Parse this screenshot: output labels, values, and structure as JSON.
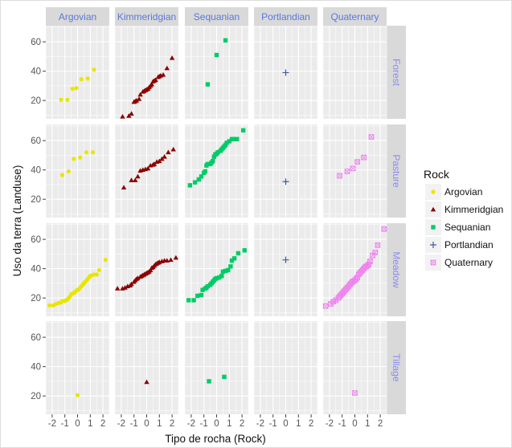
{
  "chart_data": {
    "type": "scatter",
    "subtype": "faceted normal QQ plot",
    "xlabel": "Tipo de rocha (Rock)",
    "ylabel": "Uso da terra (Landuse)",
    "xlim": [
      -2.5,
      2.5
    ],
    "ylim": [
      7.5,
      71
    ],
    "xticks": [
      -2,
      -1,
      0,
      1,
      2
    ],
    "yticks": [
      20,
      40,
      60
    ],
    "grid": true,
    "columns": [
      "Argovian",
      "Kimmeridgian",
      "Sequanian",
      "Portlandian",
      "Quaternary"
    ],
    "rows": [
      "Forest",
      "Pasture",
      "Meadow",
      "Tillage"
    ],
    "legend": {
      "title": "Rock",
      "position": "right",
      "entries": [
        {
          "name": "Argovian",
          "color": "#e8e600",
          "shape": "circle"
        },
        {
          "name": "Kimmeridgian",
          "color": "#8b0000",
          "shape": "triangle"
        },
        {
          "name": "Sequanian",
          "color": "#00cc66",
          "shape": "square"
        },
        {
          "name": "Portlandian",
          "color": "#3a5fa0",
          "shape": "plus"
        },
        {
          "name": "Quaternary",
          "color": "#ee82ee",
          "shape": "square-cross"
        }
      ]
    },
    "panels": {
      "Forest": {
        "Argovian": [
          [
            -1.3,
            20.5
          ],
          [
            -0.8,
            20.5
          ],
          [
            -0.4,
            28
          ],
          [
            -0.1,
            28.5
          ],
          [
            0.3,
            34.5
          ],
          [
            0.8,
            35
          ],
          [
            1.3,
            41
          ]
        ],
        "Kimmeridgian": [
          [
            -1.9,
            9
          ],
          [
            -1.4,
            9.5
          ],
          [
            -1.2,
            11
          ],
          [
            -1.0,
            19
          ],
          [
            -0.9,
            19.5
          ],
          [
            -0.8,
            20
          ],
          [
            -0.6,
            21
          ],
          [
            -0.5,
            24
          ],
          [
            -0.3,
            26
          ],
          [
            -0.2,
            26.5
          ],
          [
            -0.1,
            27
          ],
          [
            0,
            27.5
          ],
          [
            0.1,
            28
          ],
          [
            0.2,
            29
          ],
          [
            0.3,
            30
          ],
          [
            0.4,
            31
          ],
          [
            0.5,
            33
          ],
          [
            0.6,
            33.5
          ],
          [
            0.7,
            34
          ],
          [
            0.9,
            36
          ],
          [
            1.0,
            36.5
          ],
          [
            1.1,
            37
          ],
          [
            1.3,
            37.5
          ],
          [
            1.6,
            42
          ],
          [
            2.0,
            49
          ]
        ],
        "Sequanian": [
          [
            -0.7,
            31
          ],
          [
            0,
            51
          ],
          [
            0.7,
            61
          ]
        ],
        "Portlandian": [
          [
            0,
            39
          ]
        ],
        "Quaternary": []
      },
      "Pasture": {
        "Argovian": [
          [
            -1.2,
            36.5
          ],
          [
            -0.7,
            39
          ],
          [
            -0.3,
            47.5
          ],
          [
            0.2,
            48.5
          ],
          [
            0.7,
            52
          ],
          [
            1.2,
            52
          ]
        ],
        "Kimmeridgian": [
          [
            -1.8,
            28
          ],
          [
            -1.2,
            33
          ],
          [
            -0.9,
            33
          ],
          [
            -0.7,
            35.5
          ],
          [
            -0.5,
            39.5
          ],
          [
            -0.3,
            40
          ],
          [
            -0.1,
            40.5
          ],
          [
            0.1,
            41
          ],
          [
            0.3,
            43
          ],
          [
            0.5,
            43.5
          ],
          [
            0.6,
            44
          ],
          [
            0.8,
            45.5
          ],
          [
            1.0,
            46
          ],
          [
            1.2,
            47.5
          ],
          [
            1.4,
            49
          ],
          [
            1.7,
            52
          ],
          [
            2.1,
            54
          ]
        ],
        "Sequanian": [
          [
            -2.1,
            29.5
          ],
          [
            -1.7,
            31.5
          ],
          [
            -1.4,
            33.5
          ],
          [
            -1.2,
            35.5
          ],
          [
            -1.0,
            38
          ],
          [
            -0.9,
            39
          ],
          [
            -0.8,
            43
          ],
          [
            -0.7,
            44
          ],
          [
            -0.5,
            44
          ],
          [
            -0.4,
            45
          ],
          [
            -0.3,
            46
          ],
          [
            -0.2,
            49
          ],
          [
            -0.1,
            50.5
          ],
          [
            0,
            51
          ],
          [
            0.1,
            52
          ],
          [
            0.3,
            53
          ],
          [
            0.4,
            54
          ],
          [
            0.5,
            55
          ],
          [
            0.6,
            56
          ],
          [
            0.7,
            57
          ],
          [
            0.8,
            58.5
          ],
          [
            1.0,
            59.5
          ],
          [
            1.2,
            61
          ],
          [
            1.4,
            61
          ],
          [
            1.6,
            61
          ],
          [
            2.1,
            67
          ]
        ],
        "Portlandian": [
          [
            0,
            32
          ]
        ],
        "Quaternary": [
          [
            -1.2,
            36
          ],
          [
            -0.6,
            39
          ],
          [
            -0.15,
            41
          ],
          [
            0.2,
            45.5
          ],
          [
            0.7,
            48.5
          ],
          [
            1.3,
            62.5
          ]
        ]
      },
      "Meadow": {
        "Argovian": [
          [
            -2.2,
            15
          ],
          [
            -1.9,
            15
          ],
          [
            -1.7,
            16
          ],
          [
            -1.5,
            16.5
          ],
          [
            -1.3,
            17
          ],
          [
            -1.2,
            18
          ],
          [
            -1.0,
            18
          ],
          [
            -0.9,
            18.5
          ],
          [
            -0.8,
            19
          ],
          [
            -0.7,
            20
          ],
          [
            -0.6,
            21
          ],
          [
            -0.5,
            22.5
          ],
          [
            -0.4,
            23
          ],
          [
            -0.3,
            23.5
          ],
          [
            -0.2,
            24
          ],
          [
            -0.1,
            25
          ],
          [
            0,
            25.5
          ],
          [
            0.1,
            26
          ],
          [
            0.2,
            27
          ],
          [
            0.3,
            28
          ],
          [
            0.4,
            29
          ],
          [
            0.5,
            30
          ],
          [
            0.6,
            31
          ],
          [
            0.7,
            32
          ],
          [
            0.8,
            33
          ],
          [
            0.9,
            34
          ],
          [
            1.0,
            35
          ],
          [
            1.1,
            35.5
          ],
          [
            1.3,
            36
          ],
          [
            1.5,
            36
          ],
          [
            1.7,
            39
          ],
          [
            2.2,
            46
          ]
        ],
        "Kimmeridgian": [
          [
            -2.3,
            26.5
          ],
          [
            -1.9,
            26.5
          ],
          [
            -1.7,
            27
          ],
          [
            -1.5,
            28
          ],
          [
            -1.3,
            28.5
          ],
          [
            -1.2,
            29.5
          ],
          [
            -1.0,
            31
          ],
          [
            -0.9,
            32
          ],
          [
            -0.8,
            33
          ],
          [
            -0.7,
            33.5
          ],
          [
            -0.5,
            34.5
          ],
          [
            -0.4,
            35
          ],
          [
            -0.3,
            35.5
          ],
          [
            -0.2,
            36
          ],
          [
            -0.1,
            36.5
          ],
          [
            0,
            37
          ],
          [
            0.1,
            37.5
          ],
          [
            0.2,
            38
          ],
          [
            0.3,
            39
          ],
          [
            0.4,
            40.5
          ],
          [
            0.5,
            41
          ],
          [
            0.6,
            42
          ],
          [
            0.7,
            43
          ],
          [
            0.8,
            43.5
          ],
          [
            0.9,
            44
          ],
          [
            1.0,
            44.5
          ],
          [
            1.2,
            45
          ],
          [
            1.4,
            45.5
          ],
          [
            1.6,
            45.5
          ],
          [
            1.9,
            46
          ],
          [
            2.3,
            47.5
          ]
        ],
        "Sequanian": [
          [
            -2.2,
            18.5
          ],
          [
            -1.8,
            18.5
          ],
          [
            -1.5,
            21.5
          ],
          [
            -1.2,
            22
          ],
          [
            -1.1,
            25.5
          ],
          [
            -0.9,
            26.5
          ],
          [
            -0.8,
            27
          ],
          [
            -0.7,
            28
          ],
          [
            -0.5,
            29
          ],
          [
            -0.4,
            30
          ],
          [
            -0.3,
            31
          ],
          [
            -0.2,
            32
          ],
          [
            -0.1,
            33
          ],
          [
            0,
            33.5
          ],
          [
            0.2,
            34
          ],
          [
            0.4,
            35
          ],
          [
            0.5,
            38
          ],
          [
            0.7,
            38.5
          ],
          [
            0.9,
            39
          ],
          [
            1.1,
            41.5
          ],
          [
            1.2,
            45.5
          ],
          [
            1.4,
            47
          ],
          [
            1.7,
            50.5
          ],
          [
            2.2,
            52.5
          ]
        ],
        "Portlandian": [
          [
            0,
            46
          ]
        ],
        "Quaternary": [
          [
            -2.3,
            14.5
          ],
          [
            -1.9,
            16
          ],
          [
            -1.7,
            17.5
          ],
          [
            -1.5,
            18.5
          ],
          [
            -1.3,
            20
          ],
          [
            -1.2,
            21
          ],
          [
            -1.1,
            22
          ],
          [
            -1.0,
            23
          ],
          [
            -0.9,
            24
          ],
          [
            -0.8,
            25
          ],
          [
            -0.7,
            26
          ],
          [
            -0.6,
            27
          ],
          [
            -0.5,
            28
          ],
          [
            -0.4,
            29
          ],
          [
            -0.3,
            30
          ],
          [
            -0.2,
            31
          ],
          [
            -0.1,
            31.5
          ],
          [
            0,
            32
          ],
          [
            0.1,
            33
          ],
          [
            0.2,
            34
          ],
          [
            0.3,
            36
          ],
          [
            0.4,
            37
          ],
          [
            0.5,
            38
          ],
          [
            0.6,
            39
          ],
          [
            0.7,
            40
          ],
          [
            0.8,
            41
          ],
          [
            0.9,
            41.5
          ],
          [
            1.0,
            42
          ],
          [
            1.1,
            43
          ],
          [
            1.2,
            45
          ],
          [
            1.4,
            49
          ],
          [
            1.6,
            51
          ],
          [
            1.8,
            56
          ],
          [
            2.3,
            67
          ]
        ]
      },
      "Tillage": {
        "Argovian": [
          [
            0,
            20.5
          ]
        ],
        "Kimmeridgian": [
          [
            0,
            29.5
          ]
        ],
        "Sequanian": [
          [
            -0.6,
            30
          ],
          [
            0.6,
            33
          ]
        ],
        "Portlandian": [],
        "Quaternary": [
          [
            0,
            22
          ]
        ]
      }
    }
  }
}
